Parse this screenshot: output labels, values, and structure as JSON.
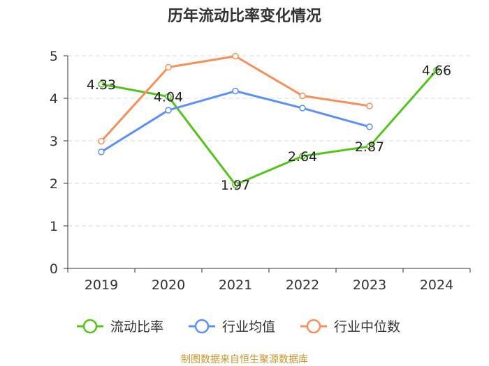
{
  "chart_data": {
    "type": "line",
    "title": "历年流动比率变化情况",
    "categories": [
      "2019",
      "2020",
      "2021",
      "2022",
      "2023",
      "2024"
    ],
    "ylim": [
      0,
      5
    ],
    "yticks": [
      0,
      1,
      2,
      3,
      4,
      5
    ],
    "ytick_labels": [
      "0",
      "1",
      "2",
      "3",
      "4",
      "5"
    ],
    "grid": true,
    "legend_position": "bottom",
    "series": [
      {
        "name": "流动比率",
        "color": "#52c41a",
        "values": [
          4.33,
          4.04,
          1.97,
          2.64,
          2.87,
          4.66
        ],
        "labels": [
          "4.33",
          "4.04",
          "1.97",
          "2.64",
          "2.87",
          "4.66"
        ]
      },
      {
        "name": "行业均值",
        "color": "#5b8ff9",
        "values": [
          2.74,
          3.72,
          4.17,
          3.77,
          3.33,
          null
        ]
      },
      {
        "name": "行业中位数",
        "color": "#f6905a",
        "values": [
          2.99,
          4.73,
          4.99,
          4.06,
          3.82,
          null
        ]
      }
    ],
    "source": "制图数据来自恒生聚源数据库"
  }
}
